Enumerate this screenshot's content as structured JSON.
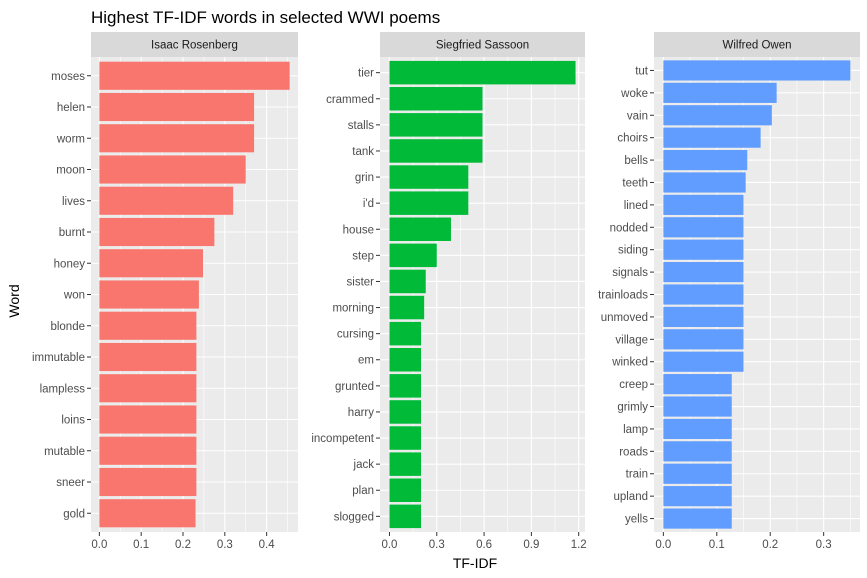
{
  "chart_data": {
    "type": "bar",
    "orientation": "horizontal",
    "title": "Highest TF-IDF words in selected WWI poems",
    "xlabel": "TF-IDF",
    "ylabel": "Word",
    "grid": true,
    "legend": "none",
    "panels": [
      {
        "name": "Isaac Rosenberg",
        "color": "#F8766D",
        "xlim": [
          -0.02,
          0.475
        ],
        "xticks": [
          0.0,
          0.1,
          0.2,
          0.3,
          0.4
        ],
        "xtick_labels": [
          "0.0",
          "0.1",
          "0.2",
          "0.3",
          "0.4"
        ],
        "categories": [
          "moses",
          "helen",
          "worm",
          "moon",
          "lives",
          "burnt",
          "honey",
          "won",
          "blonde",
          "immutable",
          "lampless",
          "loins",
          "mutable",
          "sneer",
          "gold"
        ],
        "values": [
          0.455,
          0.37,
          0.37,
          0.35,
          0.32,
          0.275,
          0.248,
          0.238,
          0.232,
          0.232,
          0.232,
          0.232,
          0.232,
          0.232,
          0.23
        ]
      },
      {
        "name": "Siegfried Sassoon",
        "color": "#00BA38",
        "xlim": [
          -0.06,
          1.24
        ],
        "xticks": [
          0.0,
          0.3,
          0.6,
          0.9,
          1.2
        ],
        "xtick_labels": [
          "0.0",
          "0.3",
          "0.6",
          "0.9",
          "1.2"
        ],
        "categories": [
          "tier",
          "crammed",
          "stalls",
          "tank",
          "grin",
          "i'd",
          "house",
          "step",
          "sister",
          "morning",
          "cursing",
          "em",
          "grunted",
          "harry",
          "incompetent",
          "jack",
          "plan",
          "slogged"
        ],
        "values": [
          1.18,
          0.59,
          0.59,
          0.59,
          0.5,
          0.5,
          0.39,
          0.3,
          0.23,
          0.22,
          0.2,
          0.2,
          0.2,
          0.2,
          0.2,
          0.2,
          0.2,
          0.2
        ]
      },
      {
        "name": "Wilfred Owen",
        "color": "#619CFF",
        "xlim": [
          -0.0175,
          0.368
        ],
        "xticks": [
          0.0,
          0.1,
          0.2,
          0.3
        ],
        "xtick_labels": [
          "0.0",
          "0.1",
          "0.2",
          "0.3"
        ],
        "categories": [
          "tut",
          "woke",
          "vain",
          "choirs",
          "bells",
          "teeth",
          "lined",
          "nodded",
          "siding",
          "signals",
          "trainloads",
          "unmoved",
          "village",
          "winked",
          "creep",
          "grimly",
          "lamp",
          "roads",
          "train",
          "upland",
          "yells"
        ],
        "values": [
          0.35,
          0.212,
          0.203,
          0.182,
          0.157,
          0.154,
          0.15,
          0.15,
          0.15,
          0.15,
          0.15,
          0.15,
          0.15,
          0.15,
          0.128,
          0.128,
          0.128,
          0.128,
          0.128,
          0.128,
          0.128
        ]
      }
    ]
  }
}
